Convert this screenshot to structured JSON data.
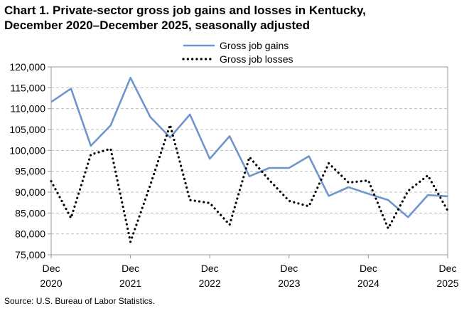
{
  "chart_data": {
    "type": "line",
    "title_line1": "Chart 1. Private-sector gross job gains and losses in Kentucky,",
    "title_line2": "December 2020–December 2025, seasonally adjusted",
    "source": "Source: U.S. Bureau of Labor Statistics.",
    "ylim": [
      75000,
      120000
    ],
    "yticks": [
      {
        "value": 75000,
        "label": "75,000"
      },
      {
        "value": 80000,
        "label": "80,000"
      },
      {
        "value": 85000,
        "label": "85,000"
      },
      {
        "value": 90000,
        "label": "90,000"
      },
      {
        "value": 95000,
        "label": "95,000"
      },
      {
        "value": 100000,
        "label": "100,000"
      },
      {
        "value": 105000,
        "label": "105,000"
      },
      {
        "value": 110000,
        "label": "110,000"
      },
      {
        "value": 115000,
        "label": "115,000"
      },
      {
        "value": 120000,
        "label": "120,000"
      }
    ],
    "x": [
      "Dec 2020",
      "Mar 2021",
      "Jun 2021",
      "Sep 2021",
      "Dec 2021",
      "Mar 2022",
      "Jun 2022",
      "Sep 2022",
      "Dec 2022",
      "Mar 2023",
      "Jun 2023",
      "Sep 2023",
      "Dec 2023",
      "Mar 2024",
      "Jun 2024",
      "Sep 2024",
      "Dec 2024",
      "Mar 2025",
      "Jun 2025",
      "Sep 2025",
      "Dec 2025"
    ],
    "xticks": [
      {
        "index": 0,
        "month": "Dec",
        "year": "2020"
      },
      {
        "index": 4,
        "month": "Dec",
        "year": "2021"
      },
      {
        "index": 8,
        "month": "Dec",
        "year": "2022"
      },
      {
        "index": 12,
        "month": "Dec",
        "year": "2023"
      },
      {
        "index": 16,
        "month": "Dec",
        "year": "2024"
      },
      {
        "index": 20,
        "month": "Dec",
        "year": "2025"
      }
    ],
    "grid": true,
    "legend_position": "top-center",
    "series": [
      {
        "name": "Gross job gains",
        "style": "solid",
        "color": "#6f95cc",
        "values": [
          111600,
          114800,
          101100,
          106000,
          117400,
          108000,
          103100,
          108600,
          98000,
          103400,
          93800,
          95800,
          95800,
          98600,
          89100,
          91200,
          89600,
          88100,
          84000,
          89300,
          89000
        ]
      },
      {
        "name": "Gross job losses",
        "style": "dotted",
        "color": "#000000",
        "values": [
          92600,
          83800,
          99000,
          100400,
          78100,
          91700,
          106100,
          88100,
          87400,
          82200,
          98400,
          92900,
          87900,
          86600,
          96900,
          92300,
          92800,
          81300,
          90300,
          94000,
          85600
        ]
      }
    ]
  }
}
